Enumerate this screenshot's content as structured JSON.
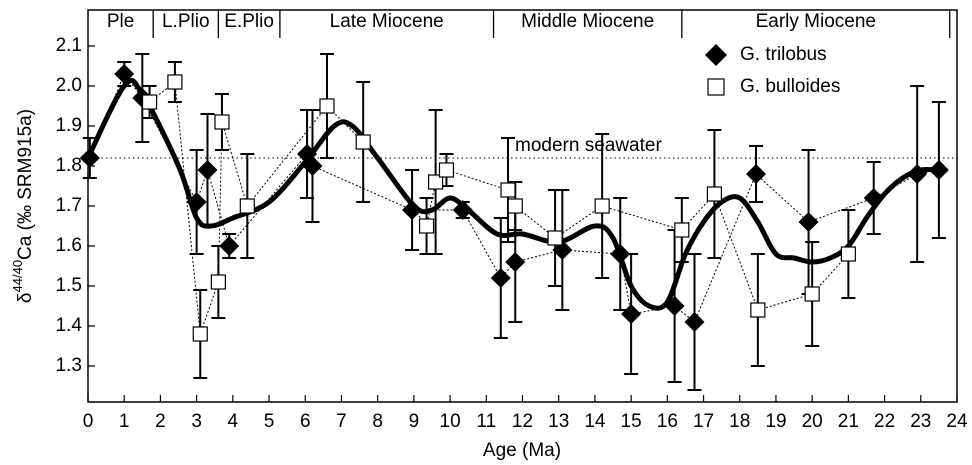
{
  "chart_data": {
    "type": "scatter",
    "xlabel": "Age (Ma)",
    "ylabel": {
      "prefix": "δ",
      "sup": "44/40",
      "main": "Ca (‰ SRM915a)"
    },
    "xlim": [
      0,
      24
    ],
    "xticks": [
      0,
      1,
      2,
      3,
      4,
      5,
      6,
      7,
      8,
      9,
      10,
      11,
      12,
      13,
      14,
      15,
      16,
      17,
      18,
      19,
      20,
      21,
      22,
      23,
      24
    ],
    "ylim": [
      1.21,
      2.19
    ],
    "yticks": [
      1.3,
      1.4,
      1.5,
      1.6,
      1.7,
      1.8,
      1.9,
      {
        "value": 2,
        "label": "2.0"
      },
      2.1
    ],
    "legend": "top-right",
    "epochs": [
      {
        "label": "Ple",
        "start": 0,
        "end": 1.8
      },
      {
        "label": "L.Plio",
        "start": 1.8,
        "end": 3.6
      },
      {
        "label": "E.Plio",
        "start": 3.6,
        "end": 5.3
      },
      {
        "label": "Late Miocene",
        "start": 5.3,
        "end": 11.2
      },
      {
        "label": "Middle Miocene",
        "start": 11.2,
        "end": 16.4
      },
      {
        "label": "Early Miocene",
        "start": 16.4,
        "end": 23.8
      }
    ],
    "reference_line": {
      "label": "modern seawater",
      "value": 1.82
    },
    "series": [
      {
        "name": "G. trilobus",
        "marker": "diamond",
        "color": "#000000",
        "x": [
          0.05,
          1.0,
          1.5,
          3.0,
          3.3,
          3.9,
          6.05,
          6.2,
          8.95,
          10.35,
          11.4,
          11.8,
          13.1,
          14.7,
          15.0,
          16.2,
          16.75,
          18.45,
          19.9,
          21.7,
          22.9,
          23.5
        ],
        "values": [
          1.82,
          2.03,
          1.97,
          1.71,
          1.79,
          1.6,
          1.83,
          1.8,
          1.69,
          1.69,
          1.52,
          1.56,
          1.59,
          1.58,
          1.43,
          1.45,
          1.41,
          1.78,
          1.66,
          1.72,
          1.78,
          1.79
        ],
        "errors": [
          0.05,
          0.03,
          0.11,
          0.13,
          0.14,
          0.03,
          0.11,
          0.14,
          0.1,
          0.02,
          0.15,
          0.15,
          0.15,
          0.14,
          0.15,
          0.19,
          0.17,
          0.07,
          0.18,
          0.09,
          0.22,
          0.17
        ]
      },
      {
        "name": "G. bulloides",
        "marker": "square",
        "color": "#000000",
        "x": [
          1.7,
          2.4,
          3.1,
          3.6,
          3.7,
          4.4,
          6.6,
          7.6,
          9.35,
          9.6,
          9.9,
          11.6,
          11.8,
          12.9,
          14.2,
          16.4,
          17.3,
          18.5,
          20.0,
          21.0
        ],
        "values": [
          1.96,
          2.01,
          1.38,
          1.51,
          1.91,
          1.7,
          1.95,
          1.86,
          1.65,
          1.76,
          1.79,
          1.74,
          1.7,
          1.62,
          1.7,
          1.64,
          1.73,
          1.44,
          1.48,
          1.58
        ],
        "errors": [
          0.04,
          0.05,
          0.11,
          0.09,
          0.07,
          0.13,
          0.13,
          0.15,
          0.07,
          0.18,
          0.04,
          0.13,
          0.06,
          0.12,
          0.18,
          0.08,
          0.16,
          0.14,
          0.13,
          0.11
        ]
      }
    ],
    "smooth_curve": {
      "x": [
        0,
        1,
        1.5,
        2.5,
        3.0,
        3.4,
        4,
        5,
        6,
        6.8,
        7.3,
        8,
        9,
        9.5,
        10,
        10.5,
        11.3,
        12,
        13,
        14,
        14.5,
        15,
        15.5,
        16,
        16.5,
        17,
        17.5,
        18,
        18.5,
        19,
        19.5,
        20,
        20.5,
        21,
        21.5,
        22,
        22.5,
        23,
        23.5
      ],
      "values": [
        1.82,
        2.0,
        1.98,
        1.8,
        1.67,
        1.65,
        1.67,
        1.71,
        1.81,
        1.9,
        1.9,
        1.82,
        1.7,
        1.69,
        1.72,
        1.69,
        1.63,
        1.63,
        1.61,
        1.65,
        1.62,
        1.5,
        1.45,
        1.46,
        1.58,
        1.66,
        1.71,
        1.72,
        1.66,
        1.58,
        1.57,
        1.56,
        1.57,
        1.6,
        1.67,
        1.73,
        1.77,
        1.79,
        1.79
      ]
    }
  }
}
